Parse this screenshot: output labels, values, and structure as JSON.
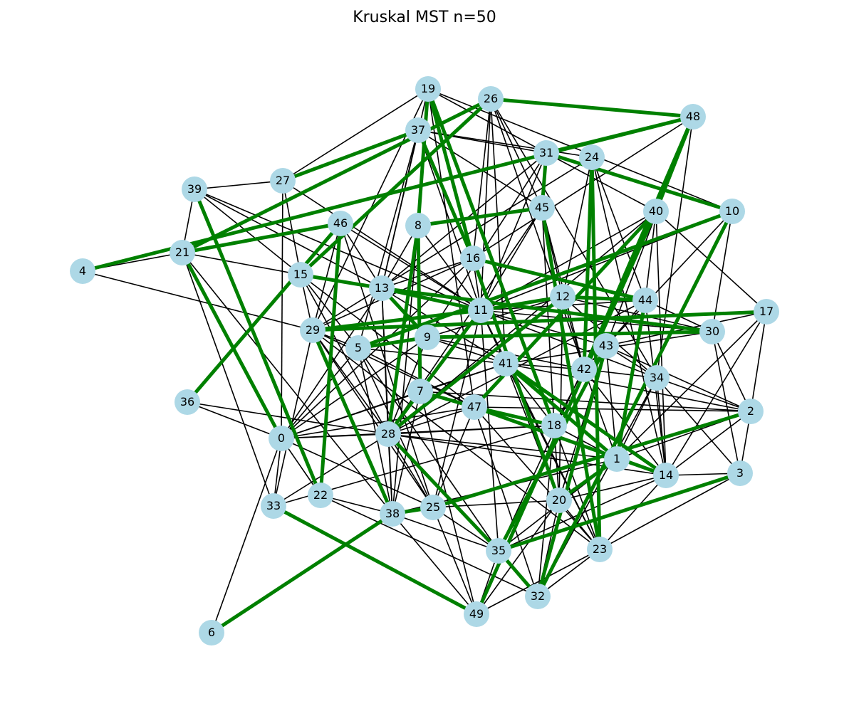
{
  "title": "Kruskal MST n=50",
  "colors": {
    "background": "#ffffff",
    "node_fill": "#add8e6",
    "edge": "#000000",
    "mst_edge": "#008000",
    "label": "#000000"
  },
  "graph": {
    "nodes": [
      "0",
      "1",
      "2",
      "3",
      "4",
      "5",
      "6",
      "7",
      "8",
      "9",
      "10",
      "11",
      "12",
      "13",
      "14",
      "15",
      "16",
      "17",
      "18",
      "19",
      "20",
      "21",
      "22",
      "23",
      "24",
      "25",
      "26",
      "27",
      "28",
      "29",
      "30",
      "31",
      "32",
      "33",
      "34",
      "35",
      "36",
      "37",
      "38",
      "39",
      "40",
      "41",
      "42",
      "43",
      "44",
      "45",
      "46",
      "47",
      "48",
      "49"
    ],
    "mst_edges": [
      [
        26,
        48
      ],
      [
        26,
        46
      ],
      [
        26,
        29
      ],
      [
        48,
        31
      ],
      [
        48,
        24
      ],
      [
        48,
        40
      ],
      [
        48,
        1
      ],
      [
        37,
        4
      ],
      [
        37,
        16
      ],
      [
        31,
        27
      ],
      [
        31,
        21
      ],
      [
        24,
        10
      ],
      [
        24,
        42
      ],
      [
        19,
        16
      ],
      [
        19,
        18
      ],
      [
        19,
        8
      ],
      [
        8,
        45
      ],
      [
        8,
        28
      ],
      [
        45,
        23
      ],
      [
        46,
        15
      ],
      [
        46,
        0
      ],
      [
        15,
        13
      ],
      [
        13,
        30
      ],
      [
        16,
        20
      ],
      [
        16,
        12
      ],
      [
        12,
        44
      ],
      [
        12,
        28
      ],
      [
        11,
        28
      ],
      [
        11,
        17
      ],
      [
        11,
        29
      ],
      [
        9,
        30
      ],
      [
        9,
        5
      ],
      [
        5,
        10
      ],
      [
        29,
        38
      ],
      [
        29,
        22
      ],
      [
        41,
        1
      ],
      [
        7,
        47
      ],
      [
        7,
        8
      ],
      [
        47,
        18
      ],
      [
        47,
        40
      ],
      [
        0,
        21
      ],
      [
        22,
        39
      ],
      [
        22,
        40
      ],
      [
        28,
        35
      ],
      [
        35,
        43
      ],
      [
        35,
        3
      ],
      [
        35,
        32
      ],
      [
        14,
        47
      ],
      [
        2,
        25
      ],
      [
        25,
        38
      ],
      [
        38,
        6
      ],
      [
        33,
        49
      ],
      [
        49,
        40
      ],
      [
        36,
        27
      ],
      [
        32,
        10
      ],
      [
        32,
        43
      ]
    ],
    "mst_total_edges_note": "",
    "other_edges": [
      [
        19,
        27
      ],
      [
        19,
        13
      ],
      [
        19,
        31
      ],
      [
        19,
        47
      ],
      [
        19,
        29
      ],
      [
        19,
        10
      ],
      [
        26,
        11
      ],
      [
        26,
        42
      ],
      [
        26,
        45
      ],
      [
        26,
        41
      ],
      [
        26,
        34
      ],
      [
        26,
        16
      ],
      [
        37,
        31
      ],
      [
        37,
        24
      ],
      [
        37,
        13
      ],
      [
        37,
        11
      ],
      [
        37,
        45
      ],
      [
        37,
        5
      ],
      [
        31,
        40
      ],
      [
        31,
        11
      ],
      [
        31,
        13
      ],
      [
        31,
        9
      ],
      [
        24,
        44
      ],
      [
        24,
        12
      ],
      [
        24,
        14
      ],
      [
        24,
        29
      ],
      [
        48,
        34
      ],
      [
        48,
        43
      ],
      [
        48,
        16
      ],
      [
        39,
        27
      ],
      [
        39,
        21
      ],
      [
        39,
        13
      ],
      [
        39,
        15
      ],
      [
        39,
        11
      ],
      [
        27,
        15
      ],
      [
        27,
        0
      ],
      [
        27,
        11
      ],
      [
        46,
        13
      ],
      [
        46,
        11
      ],
      [
        46,
        29
      ],
      [
        46,
        22
      ],
      [
        46,
        25
      ],
      [
        4,
        21
      ],
      [
        4,
        29
      ],
      [
        21,
        15
      ],
      [
        21,
        33
      ],
      [
        21,
        38
      ],
      [
        45,
        11
      ],
      [
        45,
        42
      ],
      [
        45,
        12
      ],
      [
        45,
        28
      ],
      [
        45,
        18
      ],
      [
        8,
        11
      ],
      [
        8,
        13
      ],
      [
        8,
        38
      ],
      [
        16,
        13
      ],
      [
        16,
        11
      ],
      [
        16,
        29
      ],
      [
        16,
        0
      ],
      [
        16,
        44
      ],
      [
        40,
        44
      ],
      [
        40,
        11
      ],
      [
        40,
        14
      ],
      [
        40,
        35
      ],
      [
        40,
        17
      ],
      [
        40,
        28
      ],
      [
        10,
        42
      ],
      [
        10,
        30
      ],
      [
        10,
        11
      ],
      [
        15,
        29
      ],
      [
        15,
        5
      ],
      [
        15,
        47
      ],
      [
        15,
        28
      ],
      [
        13,
        0
      ],
      [
        13,
        28
      ],
      [
        13,
        38
      ],
      [
        13,
        11
      ],
      [
        13,
        41
      ],
      [
        12,
        11
      ],
      [
        12,
        30
      ],
      [
        12,
        42
      ],
      [
        12,
        9
      ],
      [
        12,
        34
      ],
      [
        12,
        20
      ],
      [
        11,
        41
      ],
      [
        11,
        43
      ],
      [
        11,
        44
      ],
      [
        11,
        30
      ],
      [
        11,
        23
      ],
      [
        11,
        34
      ],
      [
        11,
        25
      ],
      [
        11,
        35
      ],
      [
        44,
        30
      ],
      [
        44,
        43
      ],
      [
        44,
        1
      ],
      [
        44,
        14
      ],
      [
        44,
        28
      ],
      [
        17,
        1
      ],
      [
        17,
        14
      ],
      [
        17,
        2
      ],
      [
        17,
        43
      ],
      [
        29,
        5
      ],
      [
        29,
        28
      ],
      [
        29,
        47
      ],
      [
        29,
        25
      ],
      [
        29,
        33
      ],
      [
        29,
        23
      ],
      [
        9,
        42
      ],
      [
        9,
        28
      ],
      [
        9,
        0
      ],
      [
        9,
        5
      ],
      [
        9,
        41
      ],
      [
        30,
        3
      ],
      [
        30,
        41
      ],
      [
        30,
        2
      ],
      [
        43,
        2
      ],
      [
        43,
        42
      ],
      [
        43,
        34
      ],
      [
        43,
        1
      ],
      [
        43,
        20
      ],
      [
        5,
        0
      ],
      [
        5,
        35
      ],
      [
        5,
        41
      ],
      [
        5,
        38
      ],
      [
        5,
        47
      ],
      [
        5,
        25
      ],
      [
        41,
        2
      ],
      [
        41,
        42
      ],
      [
        41,
        18
      ],
      [
        41,
        0
      ],
      [
        41,
        14
      ],
      [
        41,
        23
      ],
      [
        41,
        20
      ],
      [
        42,
        18
      ],
      [
        42,
        1
      ],
      [
        42,
        14
      ],
      [
        42,
        34
      ],
      [
        34,
        2
      ],
      [
        34,
        3
      ],
      [
        34,
        1
      ],
      [
        34,
        14
      ],
      [
        34,
        32
      ],
      [
        7,
        41
      ],
      [
        7,
        0
      ],
      [
        7,
        49
      ],
      [
        7,
        2
      ],
      [
        7,
        38
      ],
      [
        47,
        2
      ],
      [
        47,
        28
      ],
      [
        47,
        23
      ],
      [
        47,
        32
      ],
      [
        47,
        25
      ],
      [
        36,
        0
      ],
      [
        36,
        28
      ],
      [
        0,
        28
      ],
      [
        0,
        22
      ],
      [
        0,
        33
      ],
      [
        0,
        6
      ],
      [
        0,
        25
      ],
      [
        0,
        18
      ],
      [
        0,
        47
      ],
      [
        28,
        18
      ],
      [
        28,
        1
      ],
      [
        28,
        38
      ],
      [
        28,
        25
      ],
      [
        28,
        35
      ],
      [
        28,
        14
      ],
      [
        18,
        1
      ],
      [
        18,
        20
      ],
      [
        18,
        32
      ],
      [
        18,
        33
      ],
      [
        18,
        23
      ],
      [
        2,
        14
      ],
      [
        2,
        1
      ],
      [
        2,
        3
      ],
      [
        1,
        14
      ],
      [
        1,
        20
      ],
      [
        1,
        35
      ],
      [
        1,
        38
      ],
      [
        14,
        3
      ],
      [
        14,
        23
      ],
      [
        14,
        20
      ],
      [
        14,
        35
      ],
      [
        3,
        23
      ],
      [
        22,
        32
      ],
      [
        22,
        38
      ],
      [
        33,
        28
      ],
      [
        25,
        20
      ],
      [
        25,
        49
      ],
      [
        25,
        35
      ],
      [
        38,
        49
      ],
      [
        38,
        35
      ],
      [
        20,
        32
      ],
      [
        20,
        23
      ],
      [
        20,
        49
      ],
      [
        35,
        49
      ],
      [
        23,
        32
      ],
      [
        23,
        49
      ]
    ]
  }
}
